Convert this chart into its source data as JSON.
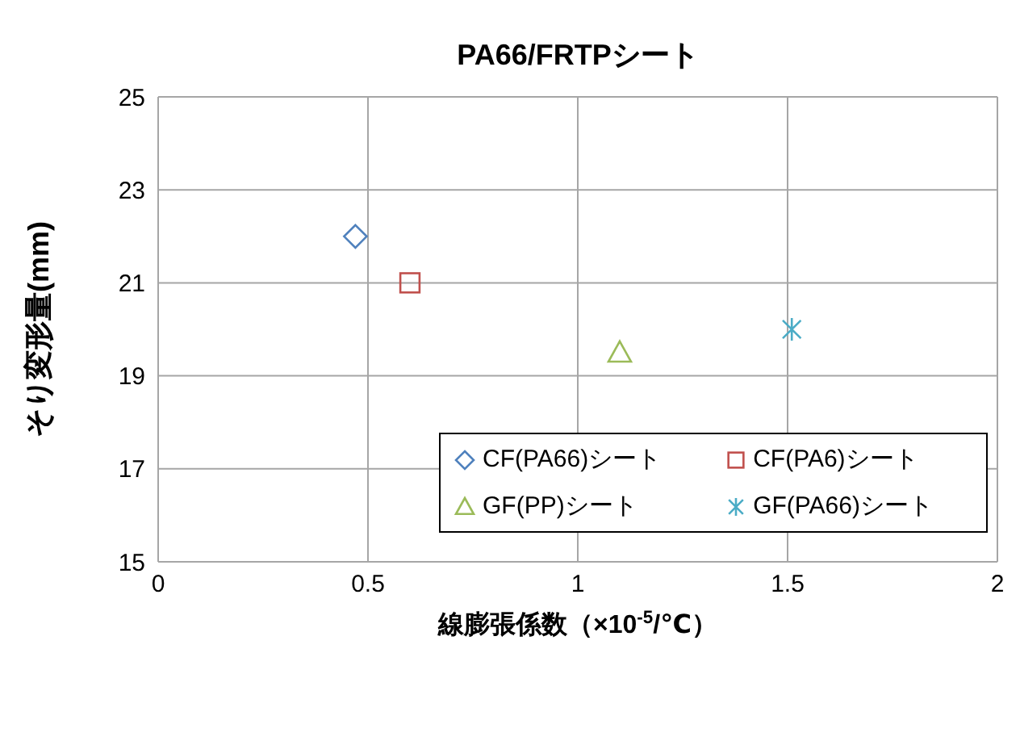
{
  "chart_data": {
    "type": "scatter",
    "title": "PA66/FRTPシート",
    "xlabel": "線膨張係数（×10$^{-5}$/℃）",
    "ylabel": "そり変形量(mm)",
    "xlim": [
      0,
      2
    ],
    "xticks": [
      0,
      0.5,
      1,
      1.5,
      2
    ],
    "ylim": [
      15,
      25
    ],
    "yticks": [
      15,
      17,
      19,
      21,
      23,
      25
    ],
    "grid": true,
    "legend": "bottom right",
    "series": [
      {
        "name": "CF(PA66)シート",
        "color": "#4f81bd",
        "marker": "diamond",
        "x": [
          0.47
        ],
        "values": [
          22
        ]
      },
      {
        "name": "CF(PA6)シート",
        "color": "#c0504d",
        "marker": "square",
        "x": [
          0.6
        ],
        "values": [
          21
        ]
      },
      {
        "name": "GF(PP)シート",
        "color": "#9bbb59",
        "marker": "triangle",
        "x": [
          1.1
        ],
        "values": [
          19.5
        ]
      },
      {
        "name": "GF(PA66)シート",
        "color": "#4bacc6",
        "marker": "cross",
        "x": [
          1.51
        ],
        "values": [
          20
        ]
      }
    ]
  }
}
